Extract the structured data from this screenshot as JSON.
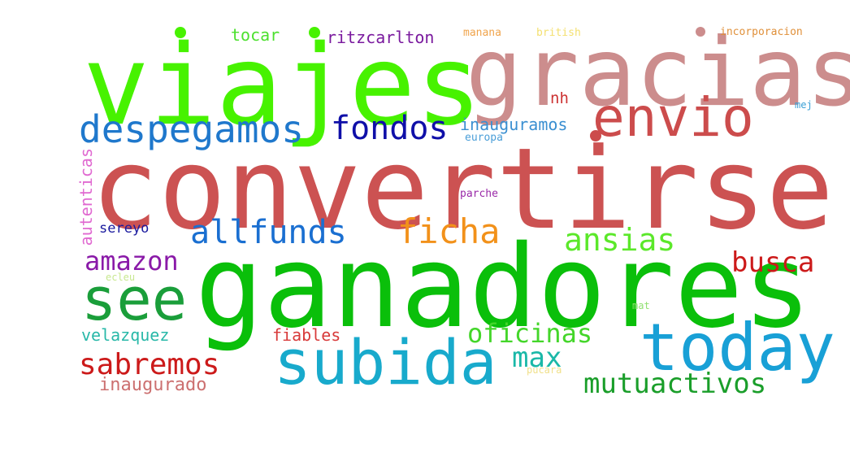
{
  "words": [
    {
      "text": "viajes",
      "color": "#47f200"
    },
    {
      "text": "gracias",
      "color": "#cc8d8d"
    },
    {
      "text": "convertirse",
      "color": "#cc5252"
    },
    {
      "text": "ganadores",
      "color": "#0abf0a"
    },
    {
      "text": "envio",
      "color": "#cc4c4c"
    },
    {
      "text": "despegamos",
      "color": "#1f78cc"
    },
    {
      "text": "fondos",
      "color": "#0f0fa8"
    },
    {
      "text": "inauguramos",
      "color": "#3a8fd1"
    },
    {
      "text": "europa",
      "color": "#4a9ed8"
    },
    {
      "text": "nh",
      "color": "#cc3333"
    },
    {
      "text": "mej",
      "color": "#3aa0d6"
    },
    {
      "text": "tocar",
      "color": "#4ce02e"
    },
    {
      "text": "ritzcarlton",
      "color": "#7a1a9e"
    },
    {
      "text": "manana",
      "color": "#f0a44c"
    },
    {
      "text": "british",
      "color": "#f4e070"
    },
    {
      "text": "incorporacion",
      "color": "#e0903a"
    },
    {
      "text": "autenticas",
      "color": "#e06ad1"
    },
    {
      "text": "parche",
      "color": "#9a2aa8"
    },
    {
      "text": "sereyo",
      "color": "#1a1a9e"
    },
    {
      "text": "allfunds",
      "color": "#1a6fd1"
    },
    {
      "text": "ficha",
      "color": "#f2911a"
    },
    {
      "text": "ansias",
      "color": "#5be82a"
    },
    {
      "text": "busca",
      "color": "#cc1a1a"
    },
    {
      "text": "amazon",
      "color": "#8a1aa8"
    },
    {
      "text": "see",
      "color": "#1a9e3a"
    },
    {
      "text": "ecleu",
      "color": "#c8e890"
    },
    {
      "text": "mat",
      "color": "#90e070"
    },
    {
      "text": "subida",
      "color": "#18aacc"
    },
    {
      "text": "today",
      "color": "#18a0d6"
    },
    {
      "text": "velazquez",
      "color": "#28b8a8"
    },
    {
      "text": "fiables",
      "color": "#d83a3a"
    },
    {
      "text": "oficinas",
      "color": "#44d62a"
    },
    {
      "text": "max",
      "color": "#1ab8a8"
    },
    {
      "text": "sabremos",
      "color": "#cc1a1a"
    },
    {
      "text": "inaugurado",
      "color": "#cc7070"
    },
    {
      "text": "pucara",
      "color": "#f0e08a"
    },
    {
      "text": "mutuactivos",
      "color": "#1a9e2a"
    }
  ]
}
